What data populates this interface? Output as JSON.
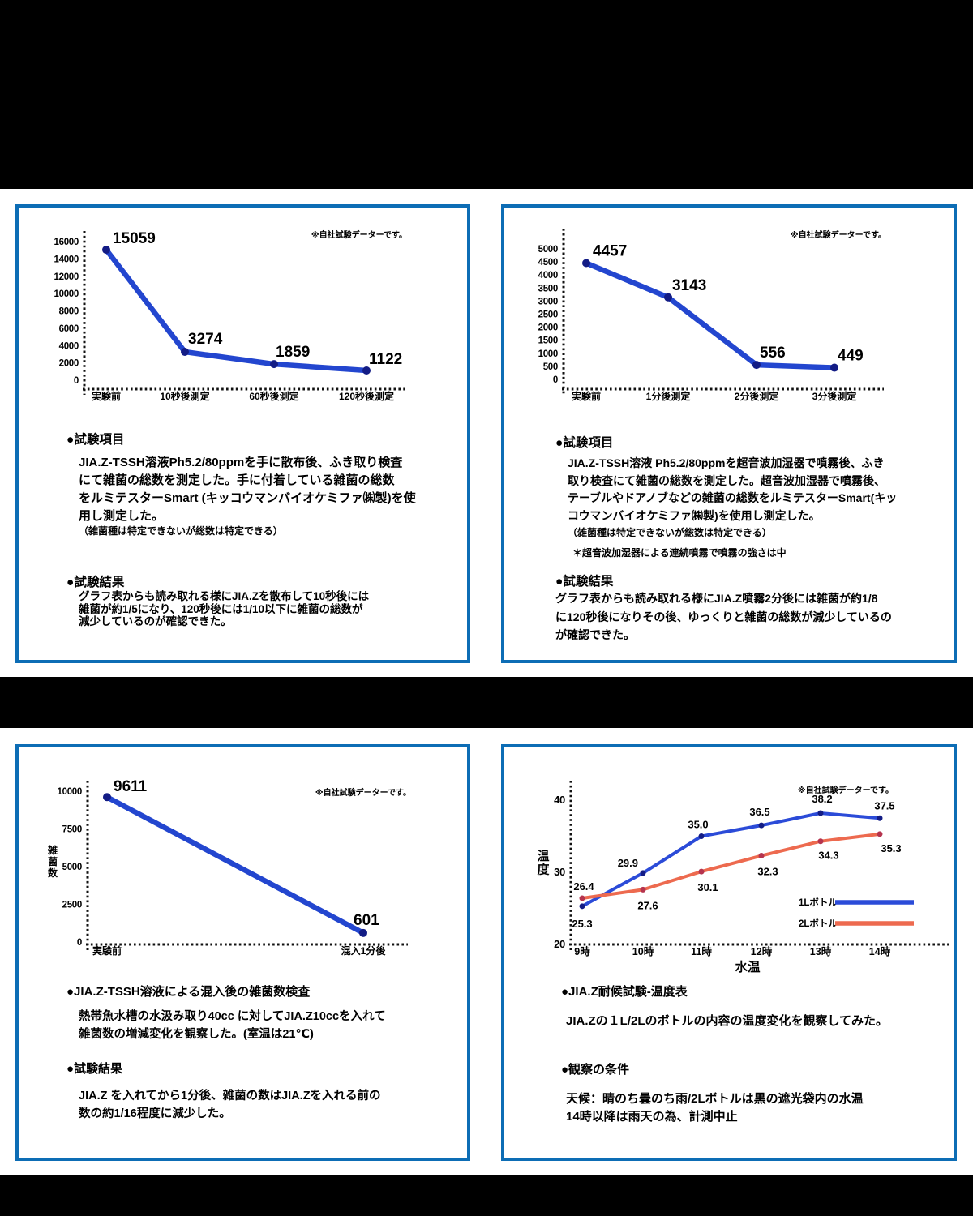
{
  "colors": {
    "page_bg": "#ffffff",
    "band": "#000000",
    "panel_border": "#0d6db5",
    "line_blue": "#2346cf",
    "dot_navy": "#131c85",
    "line_red": "#ed6a4f",
    "dot_red": "#b5344e",
    "value_label_blue": "#1f1fd6",
    "value_label_red": "#e01f1f",
    "axis": "#111111"
  },
  "panels": [
    {
      "sections": {
        "h1": "●試験項目",
        "b1": "JIA.Z-TSSH溶液Ph5.2/80ppmを手に散布後、ふき取り検査\nにて雑菌の総数を測定した。手に付着している雑菌の総数\nをルミテスターSmart (キッコウマンバイオケミファ㈱製)を使\n用し測定した。",
        "n1": "（雑菌種は特定できないが総数は特定できる）",
        "h2": "●試験結果",
        "b2": "グラフ表からも読み取れる様にJIA.Zを散布して10秒後には\n雑菌が約1/5になり、120秒後には1/10以下に雑菌の総数が\n減少しているのが確認できた。"
      }
    },
    {
      "sections": {
        "h1": "●試験項目",
        "b1": "JIA.Z-TSSH溶液 Ph5.2/80ppmを超音波加湿器で噴霧後、ふき\n取り検査にて雑菌の総数を測定した。超音波加湿器で噴霧後、\nテーブルやドアノブなどの雑菌の総数をルミテスターSmart(キッ\nコウマンバイオケミファ㈱製)を使用し測定した。",
        "n1": "（雑菌種は特定できないが総数は特定できる）",
        "n2": "＊超音波加湿器による連続噴霧で噴霧の強さは中",
        "h2": "●試験結果",
        "b2": "グラフ表からも読み取れる様にJIA.Z噴霧2分後には雑菌が約1/8\nに120秒後になりその後、ゆっくりと雑菌の総数が減少しているの\nが確認できた。"
      }
    },
    {
      "sections": {
        "h1": "●JIA.Z-TSSH溶液による混入後の雑菌数検査",
        "b1": "熱帯魚水槽の水汲み取り40cc に対してJIA.Z10ccを入れて\n雑菌数の増減変化を観察した。(室温は21℃)",
        "h2": "●試験結果",
        "b2": "JIA.Z を入れてから1分後、雑菌の数はJIA.Zを入れる前の\n数の約1/16程度に減少した。"
      }
    },
    {
      "sections": {
        "h1": "●JIA.Z耐候試験-温度表",
        "b1": "JIA.Zの１L/2Lのボトルの内容の温度変化を観察してみた。",
        "h2": "●観察の条件",
        "b2": "天候：晴のち曇のち雨/2Lボトルは黒の遮光袋内の水温\n14時以降は雨天の為、計測中止"
      }
    }
  ],
  "chart_data": [
    {
      "type": "line",
      "title": "",
      "note": "※自社試験データーです。",
      "categories": [
        "実験前",
        "10秒後測定",
        "60秒後測定",
        "120秒後測定"
      ],
      "series": [
        {
          "name": "雑菌数",
          "color": "#2346cf",
          "dot_color": "#131c85",
          "label_color": "#000000",
          "values": [
            15059,
            3274,
            1859,
            1122
          ],
          "labels": [
            "15059",
            "3274",
            "1859",
            "1122"
          ]
        }
      ],
      "yticks": [
        0,
        2000,
        4000,
        6000,
        8000,
        10000,
        12000,
        14000,
        16000
      ],
      "ylim": [
        0,
        16000
      ],
      "xlabel": "",
      "ylabel": "",
      "grid": false,
      "legend": null
    },
    {
      "type": "line",
      "title": "",
      "note": "※自社試験データーです。",
      "categories": [
        "実験前",
        "1分後測定",
        "2分後測定",
        "3分後測定"
      ],
      "series": [
        {
          "name": "雑菌数",
          "color": "#2346cf",
          "dot_color": "#131c85",
          "label_color": "#000000",
          "values": [
            4457,
            3143,
            556,
            449
          ],
          "labels": [
            "4457",
            "3143",
            "556",
            "449"
          ]
        }
      ],
      "yticks": [
        0,
        500,
        1000,
        1500,
        2000,
        2500,
        3000,
        3500,
        4000,
        4500,
        5000
      ],
      "ylim": [
        0,
        5000
      ],
      "xlabel": "",
      "ylabel": "",
      "grid": false,
      "legend": null
    },
    {
      "type": "line",
      "title": "",
      "note": "※自社試験データーです。",
      "categories": [
        "実験前",
        "混入1分後"
      ],
      "series": [
        {
          "name": "雑菌数",
          "color": "#2346cf",
          "dot_color": "#131c85",
          "label_color": "#000000",
          "values": [
            9611,
            601
          ],
          "labels": [
            "9611",
            "601"
          ]
        }
      ],
      "yticks": [
        0,
        2500,
        5000,
        7500,
        10000
      ],
      "ylim": [
        0,
        10000
      ],
      "xlabel": "",
      "ylabel": "雑菌数",
      "grid": false,
      "legend": null
    },
    {
      "type": "line",
      "title": "",
      "note": "※自社試験データーです。",
      "categories": [
        "9時",
        "10時",
        "11時",
        "12時",
        "13時",
        "14時"
      ],
      "series": [
        {
          "name": "1Lボトル",
          "color": "#2b4bd8",
          "dot_color": "#131c85",
          "label_color": "#1f1fd6",
          "values": [
            25.3,
            29.9,
            35.0,
            36.5,
            38.2,
            37.5
          ],
          "labels": [
            "25.3",
            "29.9",
            "35.0",
            "36.5",
            "38.2",
            "37.5"
          ]
        },
        {
          "name": "2Lボトル",
          "color": "#ed6a4f",
          "dot_color": "#b5344e",
          "label_color": "#e01f1f",
          "values": [
            26.4,
            27.6,
            30.1,
            32.3,
            34.3,
            35.3
          ],
          "labels": [
            "26.4",
            "27.6",
            "30.1",
            "32.3",
            "34.3",
            "35.3"
          ]
        }
      ],
      "yticks": [
        20,
        30,
        40
      ],
      "ylim": [
        20,
        40
      ],
      "xlabel": "水温",
      "ylabel": "温度",
      "grid": false,
      "legend": [
        "1Lボトル",
        "2Lボトル"
      ]
    }
  ]
}
